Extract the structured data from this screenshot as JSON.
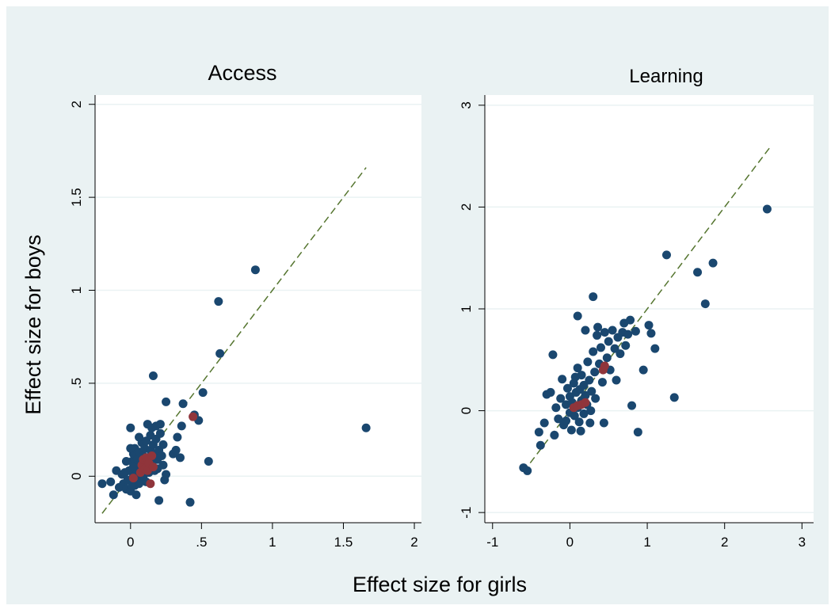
{
  "figure": {
    "common_ylabel": "Effect size for boys",
    "common_xlabel": "Effect size for girls",
    "colors": {
      "outer_bg": "#eaf2f3",
      "plot_bg": "#ffffff",
      "grid": "#eaf2f3",
      "dot": "#1a476f",
      "highlight": "#90353b",
      "diagonal": "#55752f",
      "axis": "#000000"
    }
  },
  "chart_data": [
    {
      "type": "scatter",
      "title": "Access",
      "xlim": [
        -0.25,
        2.05
      ],
      "ylim": [
        -0.25,
        2.05
      ],
      "xticks": [
        0,
        0.5,
        1,
        1.5,
        2
      ],
      "xtick_labels": [
        "0",
        ".5",
        "1",
        "1.5",
        "2"
      ],
      "yticks": [
        0,
        0.5,
        1,
        1.5,
        2
      ],
      "ytick_labels": [
        "0",
        ".5",
        "1",
        "1.5",
        "2"
      ],
      "grid": true,
      "diagonal": {
        "style": "dashed",
        "from": [
          -0.2,
          -0.2
        ],
        "to": [
          1.66,
          1.66
        ]
      },
      "series": [
        {
          "color": "#1a476f",
          "points": [
            [
              -0.2,
              -0.04
            ],
            [
              -0.14,
              -0.03
            ],
            [
              -0.12,
              -0.1
            ],
            [
              -0.1,
              0.03
            ],
            [
              -0.08,
              -0.06
            ],
            [
              -0.06,
              0.01
            ],
            [
              -0.05,
              -0.04
            ],
            [
              -0.04,
              0.02
            ],
            [
              -0.03,
              -0.07
            ],
            [
              -0.02,
              -0.02
            ],
            [
              -0.01,
              0.03
            ],
            [
              0.0,
              -0.08
            ],
            [
              0.0,
              0.26
            ],
            [
              0.01,
              0.08
            ],
            [
              0.02,
              0.0
            ],
            [
              0.02,
              0.12
            ],
            [
              0.03,
              -0.05
            ],
            [
              0.03,
              0.15
            ],
            [
              0.04,
              0.05
            ],
            [
              0.04,
              -0.1
            ],
            [
              0.05,
              0.02
            ],
            [
              0.05,
              0.09
            ],
            [
              0.06,
              -0.04
            ],
            [
              0.06,
              0.13
            ],
            [
              0.07,
              0.0
            ],
            [
              0.07,
              0.07
            ],
            [
              0.08,
              0.18
            ],
            [
              0.08,
              -0.02
            ],
            [
              0.09,
              0.11
            ],
            [
              0.1,
              0.04
            ],
            [
              0.1,
              0.15
            ],
            [
              0.11,
              -0.03
            ],
            [
              0.11,
              0.19
            ],
            [
              0.12,
              0.06
            ],
            [
              0.12,
              0.28
            ],
            [
              0.13,
              0.1
            ],
            [
              0.13,
              0.02
            ],
            [
              0.14,
              0.14
            ],
            [
              0.14,
              0.22
            ],
            [
              0.15,
              0.26
            ],
            [
              0.15,
              0.07
            ],
            [
              0.16,
              0.54
            ],
            [
              0.16,
              0.17
            ],
            [
              0.17,
              0.03
            ],
            [
              0.17,
              0.12
            ],
            [
              0.18,
              0.2
            ],
            [
              0.18,
              0.27
            ],
            [
              0.19,
              0.09
            ],
            [
              0.2,
              0.14
            ],
            [
              0.2,
              -0.13
            ],
            [
              0.21,
              0.23
            ],
            [
              0.21,
              0.28
            ],
            [
              0.22,
              0.11
            ],
            [
              0.23,
              0.17
            ],
            [
              0.24,
              -0.02
            ],
            [
              0.25,
              0.01
            ],
            [
              0.25,
              0.4
            ],
            [
              0.3,
              0.12
            ],
            [
              0.32,
              0.14
            ],
            [
              0.33,
              0.21
            ],
            [
              0.35,
              0.1
            ],
            [
              0.36,
              0.27
            ],
            [
              0.37,
              0.39
            ],
            [
              0.42,
              -0.14
            ],
            [
              0.45,
              0.33
            ],
            [
              0.48,
              0.3
            ],
            [
              0.51,
              0.45
            ],
            [
              0.55,
              0.08
            ],
            [
              0.62,
              0.94
            ],
            [
              0.63,
              0.66
            ],
            [
              0.88,
              1.11
            ],
            [
              1.66,
              0.26
            ],
            [
              0.01,
              -0.05
            ],
            [
              0.02,
              0.05
            ],
            [
              0.09,
              0.0
            ],
            [
              0.0,
              0.15
            ],
            [
              -0.03,
              0.08
            ],
            [
              0.06,
              0.21
            ],
            [
              0.19,
              0.04
            ],
            [
              0.23,
              0.06
            ],
            [
              0.11,
              0.08
            ],
            [
              0.04,
              0.01
            ]
          ]
        },
        {
          "color": "#90353b",
          "points": [
            [
              0.02,
              -0.01
            ],
            [
              0.07,
              0.02
            ],
            [
              0.08,
              0.06
            ],
            [
              0.09,
              0.09
            ],
            [
              0.1,
              0.04
            ],
            [
              0.11,
              0.1
            ],
            [
              0.12,
              0.03
            ],
            [
              0.13,
              0.07
            ],
            [
              0.14,
              -0.04
            ],
            [
              0.15,
              0.11
            ],
            [
              0.16,
              0.05
            ],
            [
              0.44,
              0.32
            ]
          ]
        }
      ]
    },
    {
      "type": "scatter",
      "title": "Learning",
      "xlim": [
        -1.1,
        3.15
      ],
      "ylim": [
        -1.1,
        3.1
      ],
      "xticks": [
        -1,
        0,
        1,
        2,
        3
      ],
      "xtick_labels": [
        "-1",
        "0",
        "1",
        "2",
        "3"
      ],
      "yticks": [
        -1,
        0,
        1,
        2,
        3
      ],
      "ytick_labels": [
        "-1",
        "0",
        "1",
        "2",
        "3"
      ],
      "grid": true,
      "diagonal": {
        "style": "dashed",
        "from": [
          -0.6,
          -0.6
        ],
        "to": [
          2.58,
          2.58
        ]
      },
      "series": [
        {
          "color": "#1a476f",
          "points": [
            [
              -0.6,
              -0.56
            ],
            [
              -0.55,
              -0.59
            ],
            [
              -0.38,
              -0.34
            ],
            [
              -0.4,
              -0.21
            ],
            [
              -0.33,
              -0.12
            ],
            [
              -0.3,
              0.16
            ],
            [
              -0.25,
              0.18
            ],
            [
              -0.22,
              0.55
            ],
            [
              -0.2,
              -0.24
            ],
            [
              -0.18,
              0.03
            ],
            [
              -0.15,
              -0.08
            ],
            [
              -0.12,
              0.12
            ],
            [
              -0.1,
              0.31
            ],
            [
              -0.08,
              -0.14
            ],
            [
              -0.05,
              0.06
            ],
            [
              -0.03,
              0.22
            ],
            [
              0.0,
              -0.02
            ],
            [
              0.0,
              0.14
            ],
            [
              0.02,
              -0.19
            ],
            [
              0.03,
              0.08
            ],
            [
              0.05,
              0.27
            ],
            [
              0.06,
              -0.05
            ],
            [
              0.08,
              0.18
            ],
            [
              0.1,
              0.03
            ],
            [
              0.1,
              0.42
            ],
            [
              0.12,
              -0.11
            ],
            [
              0.13,
              0.21
            ],
            [
              0.15,
              0.1
            ],
            [
              0.15,
              0.35
            ],
            [
              0.18,
              -0.03
            ],
            [
              0.18,
              0.25
            ],
            [
              0.2,
              0.15
            ],
            [
              0.22,
              0.06
            ],
            [
              0.23,
              0.48
            ],
            [
              0.25,
              0.3
            ],
            [
              0.26,
              -0.12
            ],
            [
              0.28,
              0.19
            ],
            [
              0.3,
              0.58
            ],
            [
              0.3,
              1.12
            ],
            [
              0.32,
              0.38
            ],
            [
              0.33,
              0.12
            ],
            [
              0.35,
              0.74
            ],
            [
              0.36,
              0.82
            ],
            [
              0.38,
              0.46
            ],
            [
              0.4,
              0.62
            ],
            [
              0.42,
              0.28
            ],
            [
              0.44,
              -0.12
            ],
            [
              0.45,
              0.77
            ],
            [
              0.48,
              0.52
            ],
            [
              0.5,
              0.68
            ],
            [
              0.52,
              0.4
            ],
            [
              0.55,
              0.79
            ],
            [
              0.58,
              0.61
            ],
            [
              0.6,
              0.3
            ],
            [
              0.62,
              0.72
            ],
            [
              0.65,
              0.56
            ],
            [
              0.68,
              0.77
            ],
            [
              0.7,
              0.86
            ],
            [
              0.72,
              0.64
            ],
            [
              0.75,
              0.75
            ],
            [
              0.78,
              0.89
            ],
            [
              0.8,
              0.05
            ],
            [
              0.85,
              0.78
            ],
            [
              0.88,
              -0.21
            ],
            [
              0.95,
              0.4
            ],
            [
              1.02,
              0.84
            ],
            [
              1.05,
              0.76
            ],
            [
              1.1,
              0.61
            ],
            [
              1.25,
              1.53
            ],
            [
              1.35,
              0.13
            ],
            [
              1.65,
              1.36
            ],
            [
              1.75,
              1.05
            ],
            [
              1.85,
              1.45
            ],
            [
              2.55,
              1.98
            ],
            [
              0.1,
              0.93
            ],
            [
              0.2,
              0.79
            ],
            [
              -0.05,
              -0.1
            ],
            [
              0.07,
              0.33
            ],
            [
              0.14,
              -0.2
            ],
            [
              0.27,
              0.0
            ]
          ]
        },
        {
          "color": "#90353b",
          "points": [
            [
              0.05,
              0.03
            ],
            [
              0.1,
              0.05
            ],
            [
              0.15,
              0.06
            ],
            [
              0.2,
              0.08
            ],
            [
              0.43,
              0.4
            ],
            [
              0.45,
              0.44
            ]
          ]
        }
      ]
    }
  ]
}
